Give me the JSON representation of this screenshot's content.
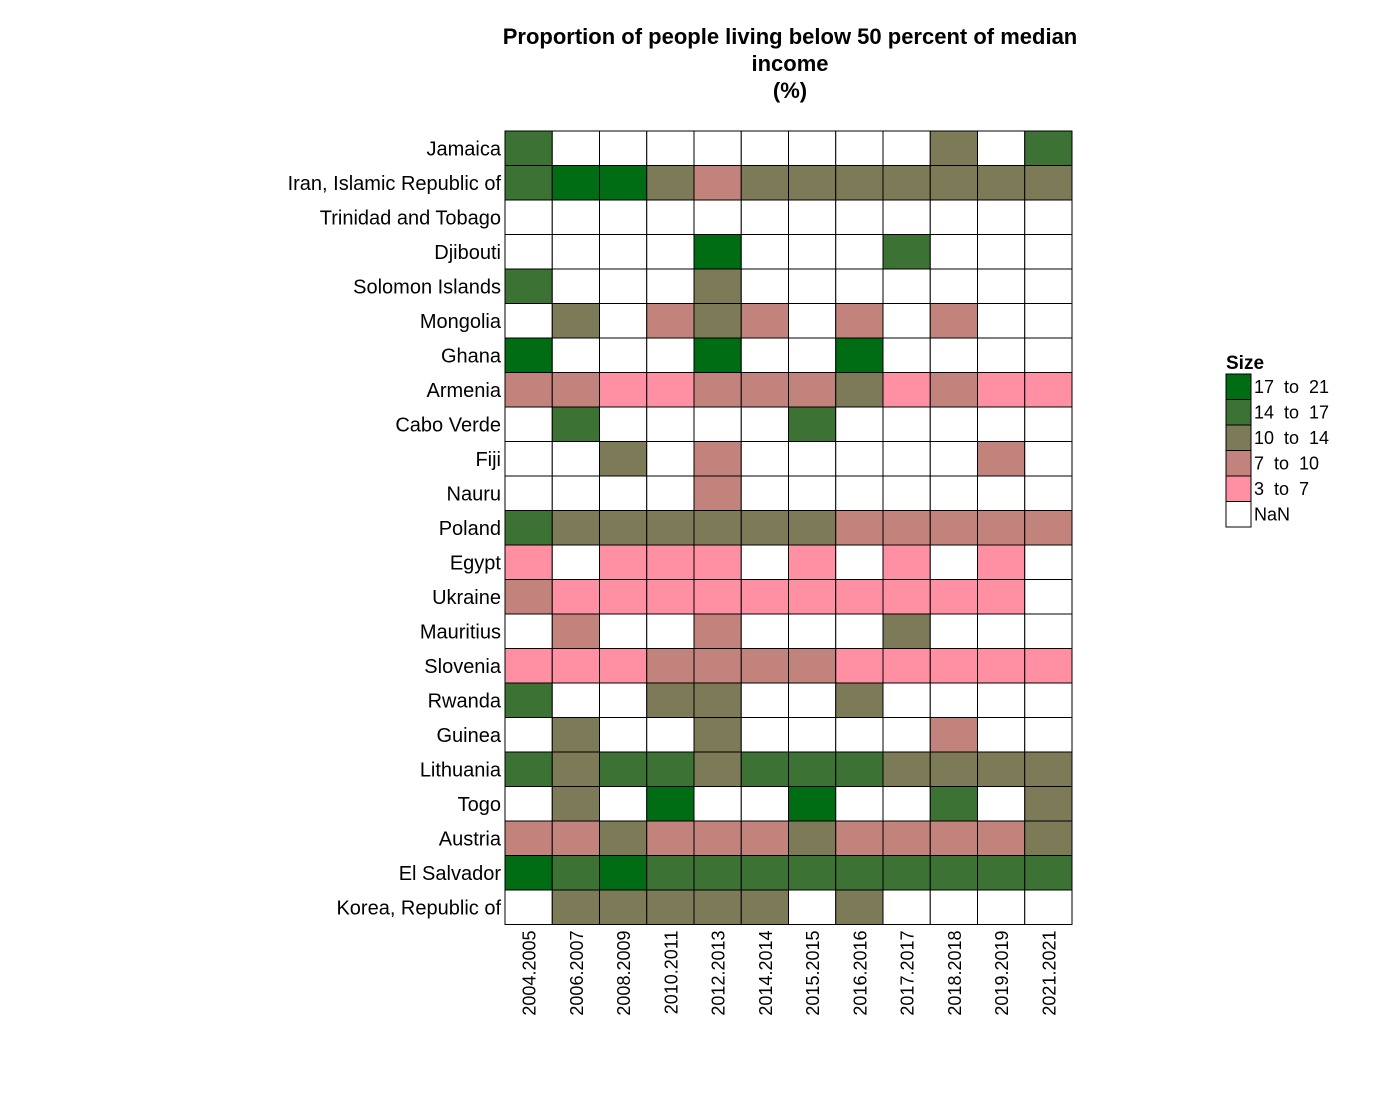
{
  "chart_data": {
    "type": "heatmap",
    "title": [
      "Proportion of people living below 50 percent of median",
      "income",
      "(%)"
    ],
    "x": [
      "2004.2005",
      "2006.2007",
      "2008.2009",
      "2010.2011",
      "2012.2013",
      "2014.2014",
      "2015.2015",
      "2016.2016",
      "2017.2017",
      "2018.2018",
      "2019.2019",
      "2021.2021"
    ],
    "y": [
      "Jamaica",
      "Iran, Islamic Republic of",
      "Trinidad and Tobago",
      "Djibouti",
      "Solomon Islands",
      "Mongolia",
      "Ghana",
      "Armenia",
      "Cabo Verde",
      "Fiji",
      "Nauru",
      "Poland",
      "Egypt",
      "Ukraine",
      "Mauritius",
      "Slovenia",
      "Rwanda",
      "Guinea",
      "Lithuania",
      "Togo",
      "Austria",
      "El Salvador",
      "Korea, Republic of"
    ],
    "bins_comment_free": true,
    "legend": {
      "title": "Size",
      "position": "right",
      "items": [
        {
          "label": "17  to  21",
          "color": "#006d14"
        },
        {
          "label": "14  to  17",
          "color": "#3d7235"
        },
        {
          "label": "10  to  14",
          "color": "#7d7a57"
        },
        {
          "label": "7  to  10",
          "color": "#c3837d"
        },
        {
          "label": "3  to  7",
          "color": "#ff8fa3"
        },
        {
          "label": "NaN",
          "color": "#ffffff"
        }
      ]
    },
    "cells": [
      [
        4,
        -1,
        -1,
        -1,
        -1,
        -1,
        -1,
        -1,
        -1,
        3,
        -1,
        4
      ],
      [
        4,
        5,
        5,
        3,
        2,
        3,
        3,
        3,
        3,
        3,
        3,
        3
      ],
      [
        -1,
        -1,
        -1,
        -1,
        -1,
        -1,
        -1,
        -1,
        -1,
        -1,
        -1,
        -1
      ],
      [
        -1,
        -1,
        -1,
        -1,
        5,
        -1,
        -1,
        -1,
        4,
        -1,
        -1,
        -1
      ],
      [
        4,
        -1,
        -1,
        -1,
        3,
        -1,
        -1,
        -1,
        -1,
        -1,
        -1,
        -1
      ],
      [
        -1,
        3,
        -1,
        2,
        3,
        2,
        -1,
        2,
        -1,
        2,
        -1,
        -1
      ],
      [
        5,
        -1,
        -1,
        -1,
        5,
        -1,
        -1,
        5,
        -1,
        -1,
        -1,
        -1
      ],
      [
        2,
        2,
        1,
        1,
        2,
        2,
        2,
        3,
        1,
        2,
        1,
        1
      ],
      [
        -1,
        4,
        -1,
        -1,
        -1,
        -1,
        4,
        -1,
        -1,
        -1,
        -1,
        -1
      ],
      [
        -1,
        -1,
        3,
        -1,
        2,
        -1,
        -1,
        -1,
        -1,
        -1,
        2,
        -1
      ],
      [
        -1,
        -1,
        -1,
        -1,
        2,
        -1,
        -1,
        -1,
        -1,
        -1,
        -1,
        -1
      ],
      [
        4,
        3,
        3,
        3,
        3,
        3,
        3,
        2,
        2,
        2,
        2,
        2
      ],
      [
        1,
        -1,
        1,
        1,
        1,
        -1,
        1,
        -1,
        1,
        -1,
        1,
        -1
      ],
      [
        2,
        1,
        1,
        1,
        1,
        1,
        1,
        1,
        1,
        1,
        1,
        -1
      ],
      [
        -1,
        2,
        -1,
        -1,
        2,
        -1,
        -1,
        -1,
        3,
        -1,
        -1,
        -1
      ],
      [
        1,
        1,
        1,
        2,
        2,
        2,
        2,
        1,
        1,
        1,
        1,
        1
      ],
      [
        4,
        -1,
        -1,
        3,
        3,
        -1,
        -1,
        3,
        -1,
        -1,
        -1,
        -1
      ],
      [
        -1,
        3,
        -1,
        -1,
        3,
        -1,
        -1,
        -1,
        -1,
        2,
        -1,
        -1
      ],
      [
        4,
        3,
        4,
        4,
        3,
        4,
        4,
        4,
        3,
        3,
        3,
        3
      ],
      [
        -1,
        3,
        -1,
        5,
        -1,
        -1,
        5,
        -1,
        -1,
        4,
        -1,
        3
      ],
      [
        2,
        2,
        3,
        2,
        2,
        2,
        3,
        2,
        2,
        2,
        2,
        3
      ],
      [
        5,
        4,
        5,
        4,
        4,
        4,
        4,
        4,
        4,
        4,
        4,
        4
      ],
      [
        -1,
        3,
        3,
        3,
        3,
        3,
        -1,
        3,
        -1,
        -1,
        -1,
        -1
      ]
    ]
  }
}
